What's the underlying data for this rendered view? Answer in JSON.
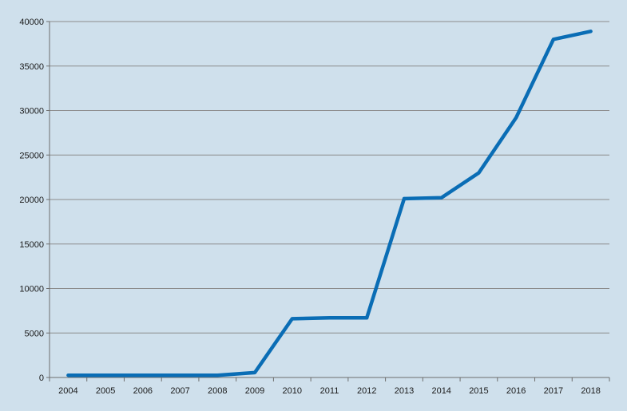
{
  "colors": {
    "background": "#cfe0ec",
    "line": "#0a6db5",
    "grid": "#8c8c8c",
    "axis": "#6e6e6e"
  },
  "chart_data": {
    "type": "line",
    "title": "",
    "xlabel": "",
    "ylabel": "",
    "categories": [
      "2004",
      "2005",
      "2006",
      "2007",
      "2008",
      "2009",
      "2010",
      "2011",
      "2012",
      "2013",
      "2014",
      "2015",
      "2016",
      "2017",
      "2018"
    ],
    "series": [
      {
        "values": [
          250,
          250,
          250,
          250,
          250,
          550,
          6600,
          6700,
          6700,
          20100,
          20200,
          23000,
          29200,
          38000,
          38900
        ]
      }
    ],
    "ylim": [
      0,
      40000
    ],
    "yticks": [
      "0",
      "5000",
      "10000",
      "15000",
      "20000",
      "25000",
      "30000",
      "35000",
      "40000"
    ],
    "grid": true,
    "legend": "none"
  }
}
